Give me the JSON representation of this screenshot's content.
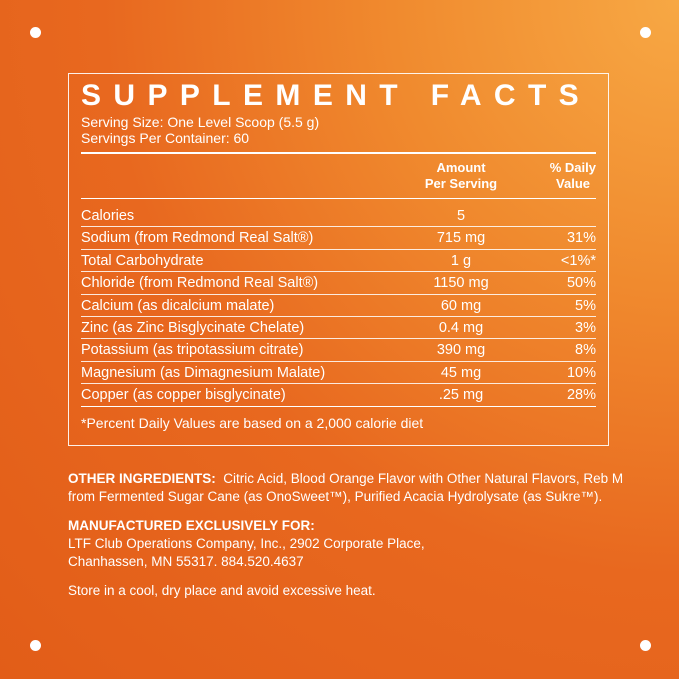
{
  "title": "SUPPLEMENT FACTS",
  "serving_size": "Serving Size: One Level Scoop (5.5 g)",
  "servings_per_container": "Servings Per Container: 60",
  "header": {
    "amount_line1": "Amount",
    "amount_line2": "Per Serving",
    "dv_line1": "% Daily",
    "dv_line2": "Value"
  },
  "rows": [
    {
      "name": "Calories",
      "amount": "5",
      "dv": ""
    },
    {
      "name": "Sodium (from Redmond Real Salt®)",
      "amount": "715 mg",
      "dv": "31%"
    },
    {
      "name": "Total Carbohydrate",
      "amount": "1 g",
      "dv": "<1%*"
    },
    {
      "name": "Chloride (from Redmond Real Salt®)",
      "amount": "1150 mg",
      "dv": "50%"
    },
    {
      "name": "Calcium (as dicalcium malate)",
      "amount": "60 mg",
      "dv": "5%"
    },
    {
      "name": "Zinc (as Zinc Bisglycinate Chelate)",
      "amount": "0.4 mg",
      "dv": "3%"
    },
    {
      "name": "Potassium (as tripotassium citrate)",
      "amount": "390 mg",
      "dv": "8%"
    },
    {
      "name": "Magnesium (as Dimagnesium Malate)",
      "amount": "45 mg",
      "dv": "10%"
    },
    {
      "name": "Copper (as copper bisglycinate)",
      "amount": ".25 mg",
      "dv": "28%"
    }
  ],
  "footnote": "*Percent Daily Values are based on a 2,000 calorie diet",
  "other_ingredients_label": "OTHER INGREDIENTS:",
  "other_ingredients": "Citric Acid, Blood Orange Flavor with Other Natural Flavors, Reb M from Fermented Sugar Cane (as OnoSweet™), Purified Acacia Hydrolysate (as Sukre™).",
  "manufactured_label": "MANUFACTURED EXCLUSIVELY FOR:",
  "manufacturer_line1": "LTF Club Operations Company, Inc., 2902 Corporate Place,",
  "manufacturer_line2": "Chanhassen, MN 55317. 884.520.4637",
  "storage": "Store in a cool, dry place and avoid excessive heat.",
  "colors": {
    "background": "#e8681f",
    "highlight": "#f7a844",
    "text": "#ffffff"
  }
}
